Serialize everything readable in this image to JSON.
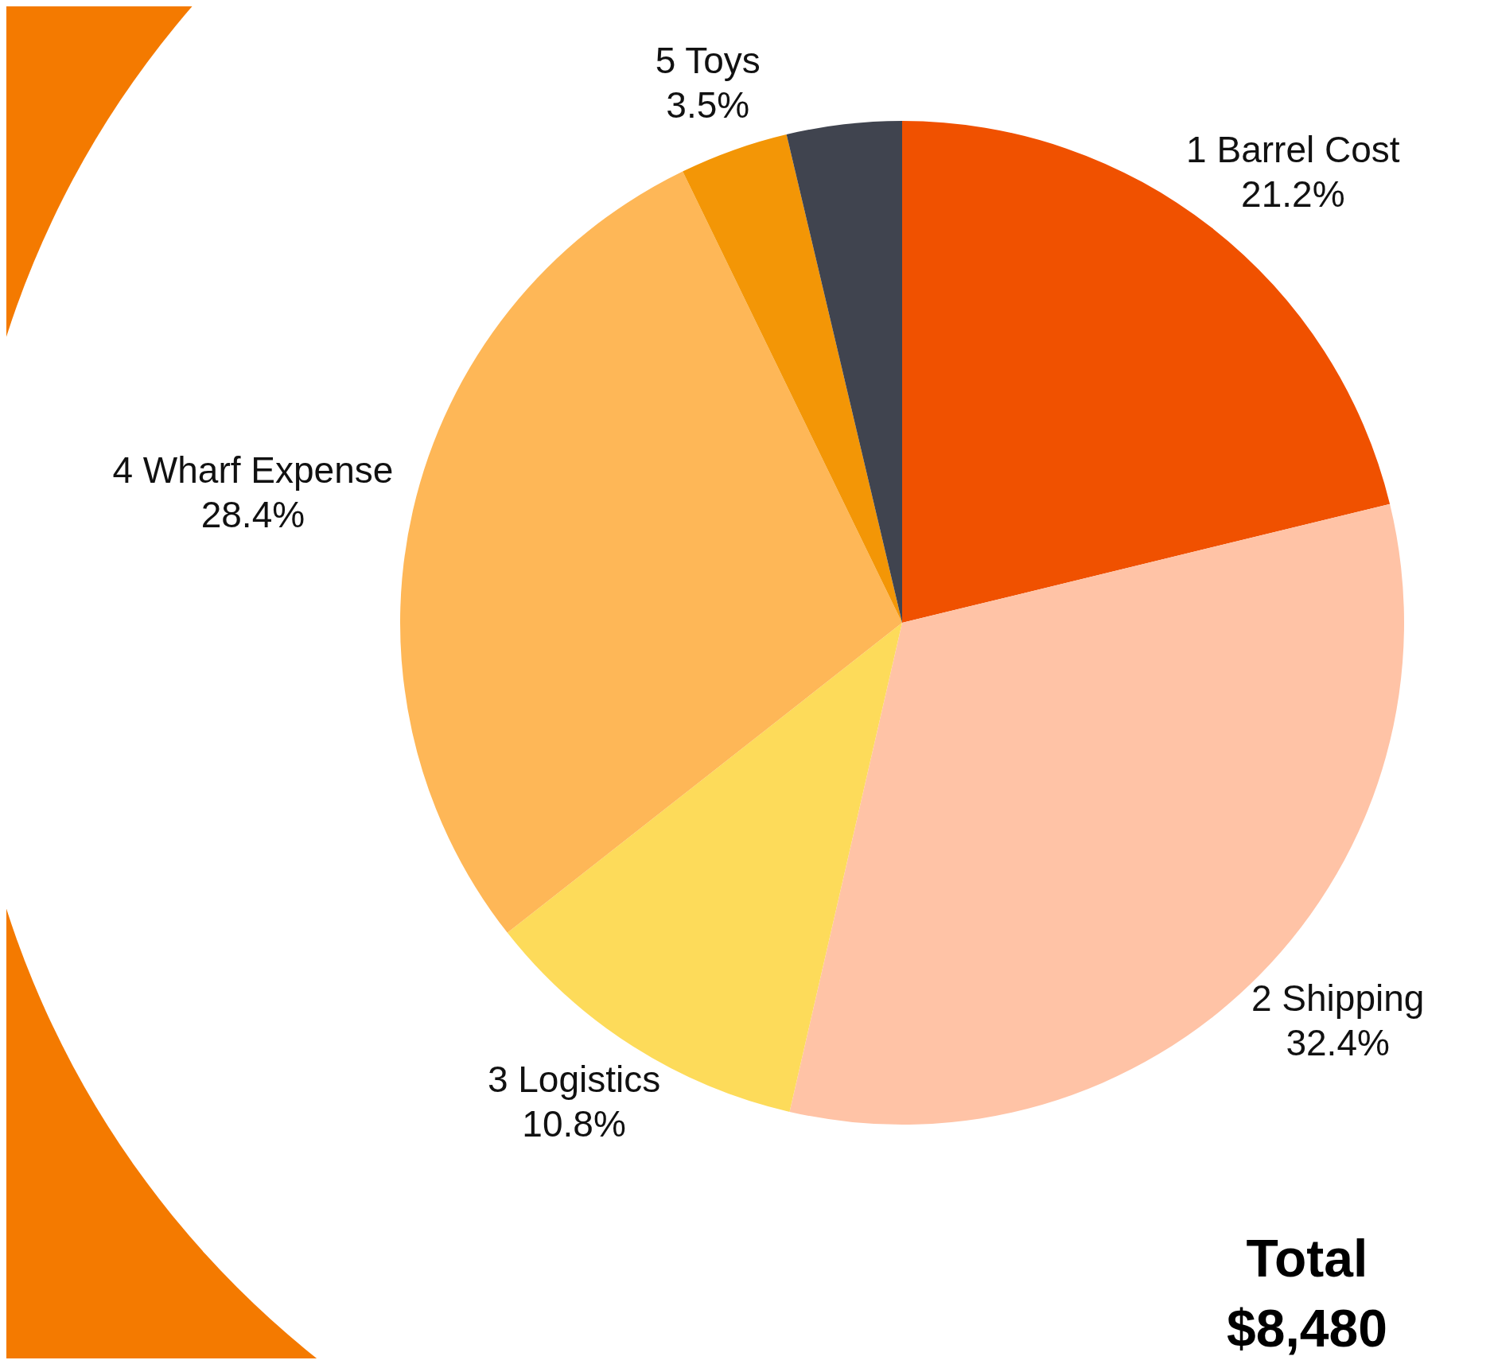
{
  "chart_data": {
    "type": "pie",
    "categories": [
      "1 Barrel Cost",
      "2 Shipping",
      "3 Logistics",
      "4 Wharf Expense",
      "5 Toys",
      null
    ],
    "values": [
      21.2,
      32.4,
      10.8,
      28.4,
      3.5,
      3.7
    ],
    "colors": [
      "#f05100",
      "#ffc3a6",
      "#fddb5a",
      "#feb757",
      "#f39606",
      "#40444f"
    ],
    "value_labels": [
      "21.2%",
      "32.4%",
      "10.8%",
      "28.4%",
      "3.5%",
      null
    ],
    "annotations": [
      "Total",
      "$8,480"
    ],
    "legend": false
  }
}
